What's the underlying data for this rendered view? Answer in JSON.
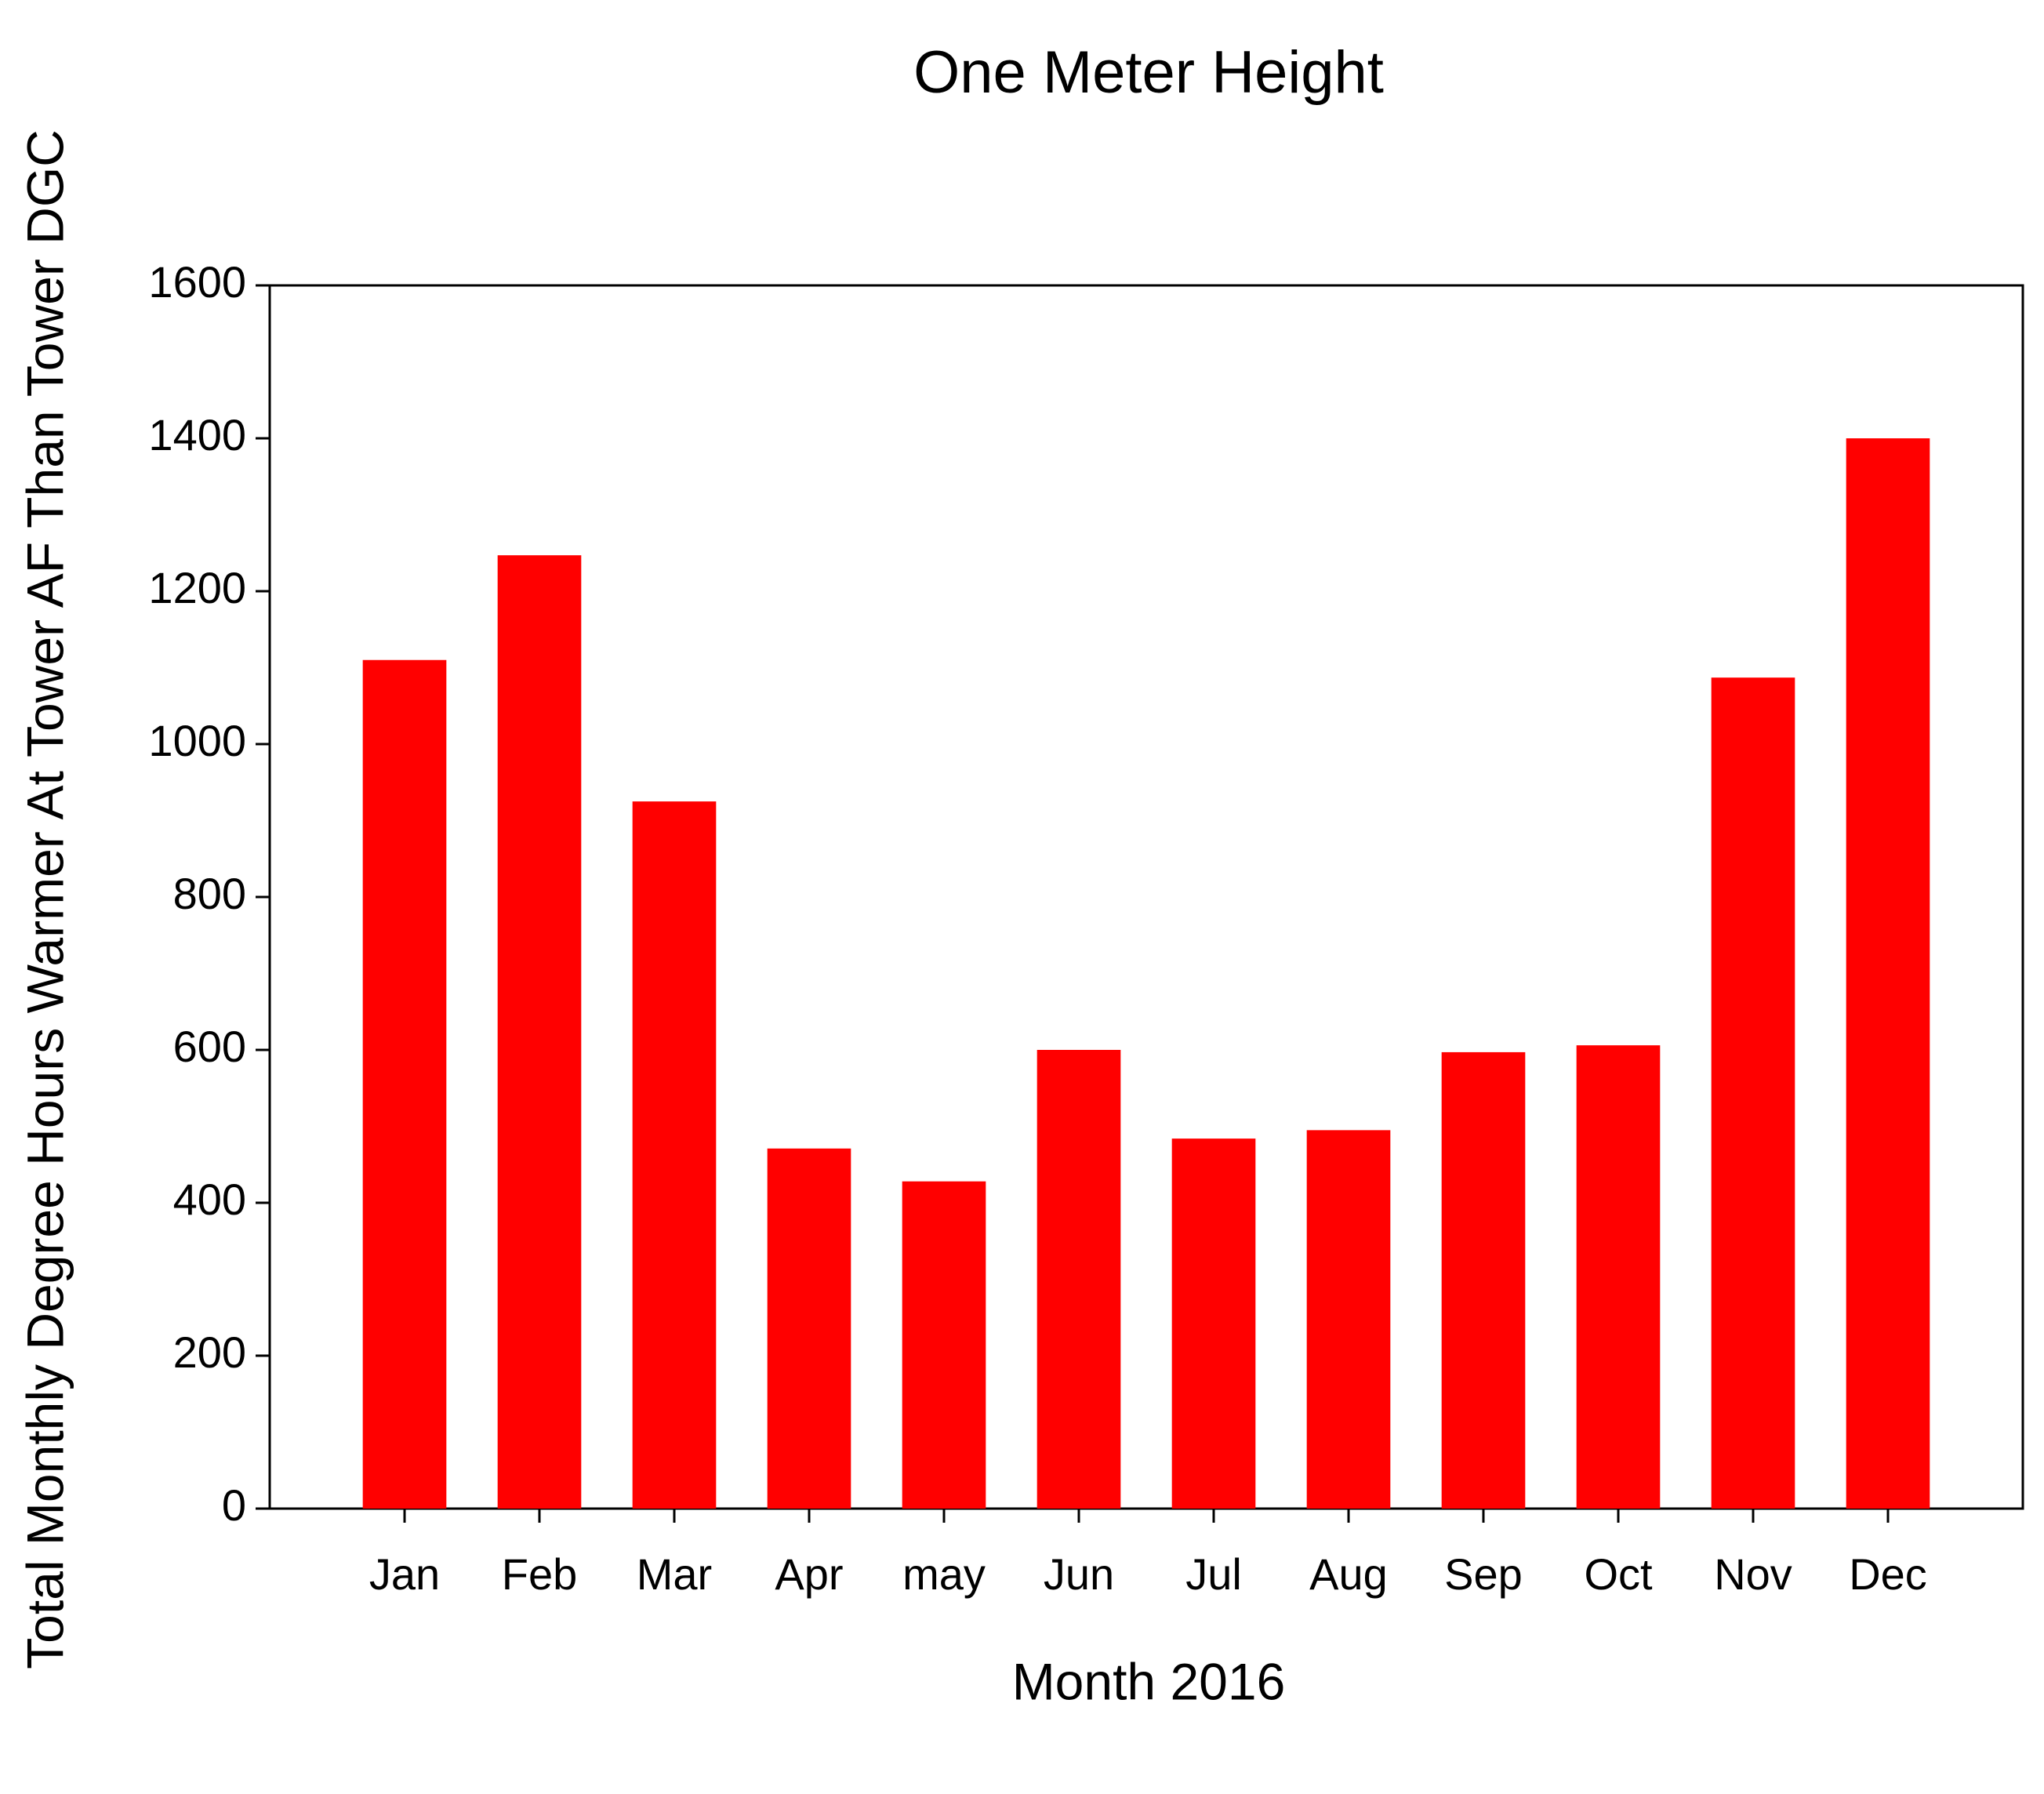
{
  "chart_data": {
    "type": "bar",
    "title": "One Meter Height",
    "x_label": "Month 2016",
    "y_label": "Total Monthly Degree Hours Warmer At Tower AF Than Tower DGC",
    "categories": [
      "Jan",
      "Feb",
      "Mar",
      "Apr",
      "may",
      "Jun",
      "Jul",
      "Aug",
      "Sep",
      "Oct",
      "Nov",
      "Dec"
    ],
    "values": [
      1110,
      1247,
      925,
      471,
      428,
      600,
      484,
      495,
      597,
      606,
      1087,
      1400
    ],
    "color": "#ff0000",
    "ylim": [
      0,
      1600
    ],
    "yticks": [
      0,
      200,
      400,
      600,
      800,
      1000,
      1200,
      1400,
      1600
    ],
    "grid": false
  }
}
